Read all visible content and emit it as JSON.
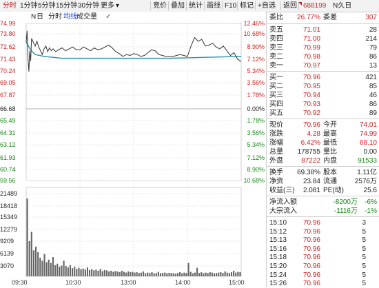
{
  "toolbar": {
    "tabs": [
      "分时",
      "1分钟",
      "5分钟",
      "15分钟",
      "30分钟",
      "更多"
    ],
    "more_arrow": "▾",
    "check_mark": "✓",
    "right_buttons": [
      "竞价",
      "叠加",
      "统计",
      "画线",
      "F10",
      "标记",
      "+自选",
      "返回"
    ]
  },
  "chart_header": {
    "n_day": "N",
    "n_day_suffix": "日",
    "items": [
      "分时",
      "均线",
      "成交量"
    ]
  },
  "price_axis": {
    "left": [
      "74.99",
      "73.80",
      "72.62",
      "71.43",
      "70.24",
      "69.05",
      "67.87",
      "66.68",
      "65.49",
      "64.31",
      "63.12",
      "61.93",
      "60.74",
      "59.56"
    ],
    "right": [
      "12.46%",
      "10.68%",
      "8.90%",
      "7.12%",
      "5.34%",
      "3.56%",
      "1.78%",
      "0.00%",
      "1.78%",
      "3.56%",
      "5.34%",
      "7.12%",
      "8.90%",
      "10.68%"
    ],
    "reference_price": "66.68"
  },
  "volume_axis": {
    "left": [
      "21489",
      "18418",
      "15349",
      "12279",
      "9209",
      "6139",
      "3070"
    ]
  },
  "time_axis": [
    "09:30",
    "10:30",
    "13:00",
    "14:00",
    "15:00"
  ],
  "chart_data": {
    "type": "line",
    "series": [
      {
        "x": [
          0,
          1,
          2,
          3,
          4,
          5,
          6,
          8,
          10,
          12,
          14,
          16,
          18,
          20,
          22,
          24,
          26,
          28,
          30,
          33,
          36,
          40,
          44,
          48,
          52,
          56,
          60,
          64,
          68,
          72,
          76,
          80,
          84,
          88,
          92,
          96,
          100,
          104,
          108,
          112,
          116,
          120,
          124,
          128,
          132,
          136,
          140,
          144,
          148,
          152,
          156,
          160,
          164,
          168,
          172,
          176,
          180,
          184,
          188,
          192,
          196,
          200,
          204,
          208,
          212,
          216,
          220,
          224,
          228,
          232,
          236,
          240
        ],
        "values": [
          73.0,
          74.2,
          71.4,
          69.9,
          72.1,
          71.0,
          73.4,
          73.0,
          72.6,
          73.1,
          72.5,
          72.1,
          71.7,
          72.3,
          72.6,
          72.0,
          72.4,
          72.1,
          72.3,
          72.0,
          72.2,
          72.4,
          72.1,
          72.3,
          72.5,
          72.2,
          72.2,
          72.5,
          72.3,
          72.1,
          72.4,
          72.2,
          72.3,
          72.5,
          72.7,
          72.4,
          72.0,
          71.8,
          71.5,
          71.7,
          71.6,
          71.8,
          71.7,
          71.5,
          71.6,
          71.9,
          72.2,
          72.1,
          71.7,
          71.6,
          71.5,
          71.5,
          71.5,
          71.6,
          71.7,
          71.6,
          71.5,
          72.6,
          73.5,
          73.1,
          73.3,
          72.6,
          72.7,
          72.9,
          72.5,
          72.3,
          72.6,
          72.1,
          71.6,
          71.9,
          71.2,
          70.96
        ]
      },
      {
        "x": [
          0,
          5,
          10,
          20,
          30,
          40,
          60,
          80,
          100,
          120,
          140,
          160,
          180,
          200,
          220,
          240
        ],
        "values": [
          73.0,
          72.2,
          71.7,
          71.5,
          71.4,
          71.3,
          71.3,
          71.3,
          71.3,
          71.3,
          71.3,
          71.3,
          71.35,
          71.4,
          71.45,
          71.5
        ]
      }
    ],
    "volume": [
      21000,
      9500,
      12000,
      7000,
      8000,
      6500,
      5000,
      4200,
      6000,
      3800,
      4500,
      3600,
      5200,
      3000,
      3400,
      2600,
      2900,
      4200,
      2800,
      2400,
      3000,
      2200,
      2600,
      2000,
      2300,
      1900,
      2100,
      1800,
      2400,
      1700,
      1900,
      1600,
      1800,
      1500,
      2000,
      1400,
      1700,
      1600,
      1300,
      1500,
      1200,
      1400,
      1300,
      1100,
      1500,
      1200,
      1000,
      1300,
      1100,
      1200,
      1000,
      1100,
      900,
      1000,
      1300,
      800,
      1000,
      900,
      1100,
      800,
      900,
      1200,
      850,
      900,
      1000,
      800,
      950,
      900,
      800,
      700,
      900,
      1100,
      800,
      1000,
      900,
      3600,
      1200,
      800,
      1000,
      2300,
      900,
      1100,
      800,
      1000,
      900,
      1100,
      1000,
      800,
      900,
      1000,
      1100,
      900,
      1300,
      1000,
      900,
      1100,
      1500,
      1000,
      1200,
      1100
    ]
  },
  "quote": {
    "code": "688199",
    "name": "N久日",
    "weibi_label": "委比",
    "weibi_value": "26.77%",
    "weicha_label": "委差",
    "weicha_value": "307",
    "asks": [
      {
        "label": "卖五",
        "price": "71.01",
        "vol": "28"
      },
      {
        "label": "卖四",
        "price": "71.00",
        "vol": "214"
      },
      {
        "label": "卖三",
        "price": "70.99",
        "vol": "79"
      },
      {
        "label": "卖二",
        "price": "70.98",
        "vol": "86"
      },
      {
        "label": "卖一",
        "price": "70.97",
        "vol": "13"
      }
    ],
    "bids": [
      {
        "label": "买一",
        "price": "70.96",
        "vol": "421"
      },
      {
        "label": "买二",
        "price": "70.95",
        "vol": "85"
      },
      {
        "label": "买三",
        "price": "70.94",
        "vol": "46"
      },
      {
        "label": "买四",
        "price": "70.93",
        "vol": "86"
      },
      {
        "label": "买五",
        "price": "70.92",
        "vol": "89"
      }
    ],
    "stats": [
      {
        "l1": "现价",
        "v1": "70.96",
        "c1": "red",
        "l2": "今开",
        "v2": "74.01",
        "c2": "red"
      },
      {
        "l1": "涨跌",
        "v1": "4.28",
        "c1": "red",
        "l2": "最高",
        "v2": "74.99",
        "c2": "red"
      },
      {
        "l1": "涨幅",
        "v1": "6.42%",
        "c1": "red",
        "l2": "最低",
        "v2": "68.10",
        "c2": "red"
      },
      {
        "l1": "总量",
        "v1": "178755",
        "c1": "dark",
        "l2": "量比",
        "v2": "0.00",
        "c2": "dark"
      },
      {
        "l1": "外盘",
        "v1": "87222",
        "c1": "red",
        "l2": "内盘",
        "v2": "91533",
        "c2": "green"
      }
    ],
    "stats2": [
      {
        "l1": "换手",
        "v1": "69.38%",
        "l2": "股本",
        "v2": "1.11亿"
      },
      {
        "l1": "净资",
        "v1": "23.84",
        "l2": "流通",
        "v2": "2576万"
      },
      {
        "l1": "收益(三)",
        "v1": "2.081",
        "l2": "PE(动)",
        "v2": "25.6"
      }
    ],
    "flows": [
      {
        "label": "净流入额",
        "value": "-8200万",
        "pct": "-6%"
      },
      {
        "label": "大宗流入",
        "value": "-1116万",
        "pct": "-1%"
      }
    ],
    "ticks": [
      {
        "time": "15:10",
        "price": "70.96",
        "vol": "3"
      },
      {
        "time": "15:12",
        "price": "70.96",
        "vol": "5"
      },
      {
        "time": "15:13",
        "price": "70.96",
        "vol": "5"
      },
      {
        "time": "15:16",
        "price": "70.96",
        "vol": "5"
      },
      {
        "time": "15:18",
        "price": "70.96",
        "vol": "5"
      },
      {
        "time": "15:20",
        "price": "70.96",
        "vol": "5"
      },
      {
        "time": "15:24",
        "price": "70.96",
        "vol": "5"
      },
      {
        "time": "15:26",
        "price": "70.96",
        "vol": "5"
      }
    ]
  },
  "colors": {
    "up": "#d72020",
    "down": "#168a16",
    "price_line": "#333333",
    "avg_line": "#2a8fa8",
    "grid": "#e6e6e6"
  }
}
